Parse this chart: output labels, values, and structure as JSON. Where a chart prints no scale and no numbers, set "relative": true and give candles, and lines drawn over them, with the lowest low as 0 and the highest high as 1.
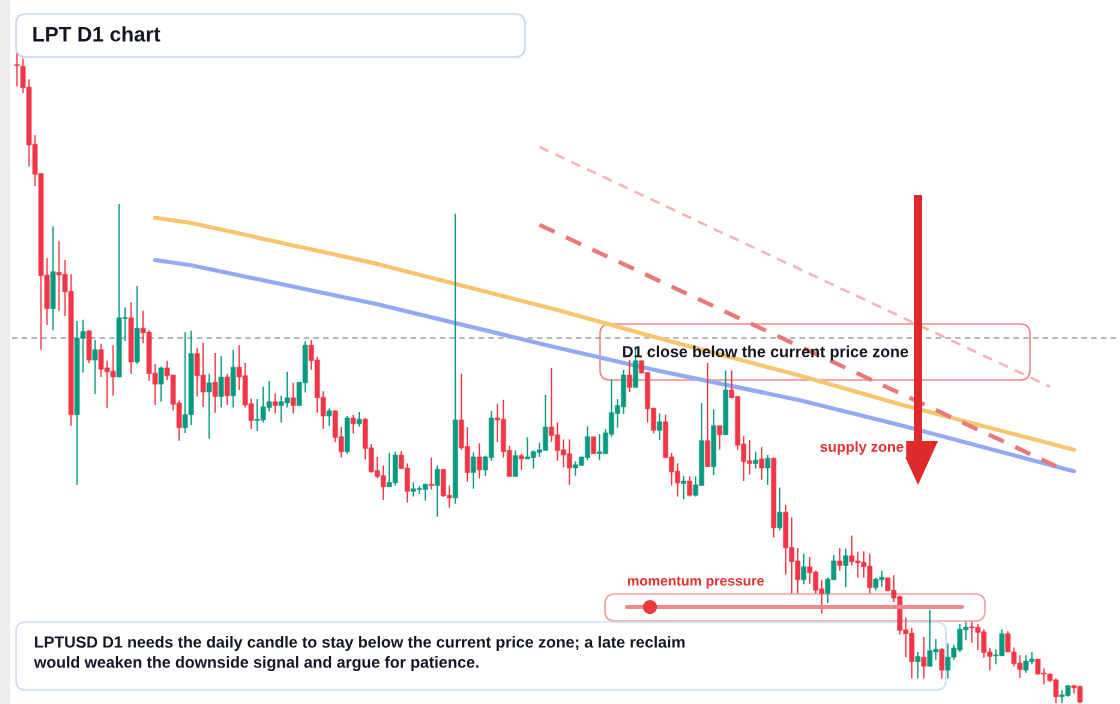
{
  "chart_data": {
    "type": "candlestick",
    "title": "LPT D1 chart",
    "relative": true,
    "categories": [
      null,
      null,
      null,
      null,
      null,
      null,
      null,
      null,
      null,
      null,
      null,
      null,
      null,
      null,
      null,
      null,
      null,
      null,
      null,
      null,
      null,
      null,
      null,
      null,
      null,
      null,
      null,
      null,
      null,
      null,
      null,
      null,
      null,
      null,
      null,
      null,
      null,
      null,
      null,
      null,
      null,
      null,
      null,
      null,
      null,
      null,
      null,
      null,
      null,
      null,
      null,
      null,
      null,
      null,
      null,
      null,
      null,
      null,
      null,
      null,
      null,
      null,
      null,
      null,
      null,
      null,
      null,
      null,
      null,
      null,
      null,
      null,
      null,
      null,
      null,
      null,
      null,
      null,
      null,
      null,
      null,
      null,
      null,
      null,
      null,
      null,
      null,
      null,
      null,
      null,
      null,
      null,
      null,
      null,
      null,
      null,
      null,
      null,
      null,
      null,
      null,
      null,
      null,
      null,
      null,
      null,
      null,
      null,
      null,
      null,
      null,
      null,
      null,
      null,
      null,
      null,
      null,
      null,
      null,
      null,
      null,
      null,
      null,
      null,
      null,
      null,
      null,
      null,
      null,
      null,
      null,
      null,
      null,
      null,
      null,
      null,
      null,
      null,
      null,
      null,
      null,
      null,
      null,
      null,
      null,
      null,
      null,
      null,
      null,
      null,
      null,
      null,
      null,
      null,
      null,
      null,
      null,
      null,
      null,
      null,
      null,
      null,
      null,
      null,
      null,
      null,
      null,
      null,
      null,
      null,
      null,
      null,
      null,
      null,
      null,
      null,
      null,
      null
    ],
    "ohlc": [
      [
        0.982,
        1.0,
        0.949,
        0.981
      ],
      [
        0.98,
        0.992,
        0.939,
        0.947
      ],
      [
        0.948,
        0.96,
        0.826,
        0.859
      ],
      [
        0.86,
        0.874,
        0.796,
        0.814
      ],
      [
        0.815,
        0.815,
        0.544,
        0.658
      ],
      [
        0.659,
        0.685,
        0.582,
        0.607
      ],
      [
        0.607,
        0.734,
        0.574,
        0.664
      ],
      [
        0.663,
        0.711,
        0.604,
        0.659
      ],
      [
        0.66,
        0.682,
        0.596,
        0.633
      ],
      [
        0.634,
        0.66,
        0.427,
        0.444
      ],
      [
        0.444,
        0.588,
        0.336,
        0.562
      ],
      [
        0.562,
        0.59,
        0.509,
        0.572
      ],
      [
        0.573,
        0.574,
        0.523,
        0.528
      ],
      [
        0.528,
        0.559,
        0.476,
        0.544
      ],
      [
        0.544,
        0.553,
        0.502,
        0.514
      ],
      [
        0.516,
        0.527,
        0.454,
        0.51
      ],
      [
        0.511,
        0.551,
        0.473,
        0.502
      ],
      [
        0.502,
        0.768,
        0.502,
        0.593
      ],
      [
        0.592,
        0.609,
        0.557,
        0.593
      ],
      [
        0.593,
        0.617,
        0.507,
        0.525
      ],
      [
        0.525,
        0.642,
        0.522,
        0.577
      ],
      [
        0.577,
        0.604,
        0.554,
        0.57
      ],
      [
        0.571,
        0.574,
        0.496,
        0.507
      ],
      [
        0.508,
        0.522,
        0.459,
        0.491
      ],
      [
        0.491,
        0.518,
        0.464,
        0.516
      ],
      [
        0.516,
        0.527,
        0.497,
        0.504
      ],
      [
        0.505,
        0.505,
        0.451,
        0.46
      ],
      [
        0.462,
        0.466,
        0.404,
        0.424
      ],
      [
        0.424,
        0.571,
        0.416,
        0.444
      ],
      [
        0.444,
        0.573,
        0.428,
        0.538
      ],
      [
        0.538,
        0.547,
        0.472,
        0.504
      ],
      [
        0.505,
        0.555,
        0.456,
        0.479
      ],
      [
        0.479,
        0.507,
        0.407,
        0.493
      ],
      [
        0.494,
        0.539,
        0.447,
        0.472
      ],
      [
        0.472,
        0.534,
        0.455,
        0.502
      ],
      [
        0.502,
        0.507,
        0.459,
        0.473
      ],
      [
        0.473,
        0.544,
        0.455,
        0.517
      ],
      [
        0.517,
        0.551,
        0.482,
        0.502
      ],
      [
        0.504,
        0.524,
        0.455,
        0.459
      ],
      [
        0.461,
        0.469,
        0.422,
        0.435
      ],
      [
        0.435,
        0.468,
        0.419,
        0.437
      ],
      [
        0.436,
        0.487,
        0.432,
        0.456
      ],
      [
        0.455,
        0.496,
        0.449,
        0.464
      ],
      [
        0.464,
        0.477,
        0.446,
        0.458
      ],
      [
        0.458,
        0.473,
        0.432,
        0.464
      ],
      [
        0.462,
        0.51,
        0.455,
        0.47
      ],
      [
        0.47,
        0.493,
        0.446,
        0.458
      ],
      [
        0.458,
        0.494,
        0.458,
        0.494
      ],
      [
        0.493,
        0.557,
        0.478,
        0.551
      ],
      [
        0.551,
        0.559,
        0.513,
        0.527
      ],
      [
        0.528,
        0.533,
        0.447,
        0.47
      ],
      [
        0.471,
        0.48,
        0.422,
        0.442
      ],
      [
        0.442,
        0.454,
        0.427,
        0.45
      ],
      [
        0.45,
        0.45,
        0.402,
        0.409
      ],
      [
        0.41,
        0.425,
        0.378,
        0.387
      ],
      [
        0.387,
        0.442,
        0.384,
        0.439
      ],
      [
        0.439,
        0.444,
        0.415,
        0.43
      ],
      [
        0.43,
        0.448,
        0.426,
        0.437
      ],
      [
        0.437,
        0.439,
        0.375,
        0.392
      ],
      [
        0.393,
        0.399,
        0.355,
        0.356
      ],
      [
        0.358,
        0.379,
        0.346,
        0.349
      ],
      [
        0.35,
        0.366,
        0.313,
        0.333
      ],
      [
        0.333,
        0.385,
        0.333,
        0.34
      ],
      [
        0.339,
        0.387,
        0.335,
        0.382
      ],
      [
        0.382,
        0.388,
        0.361,
        0.361
      ],
      [
        0.362,
        0.369,
        0.309,
        0.326
      ],
      [
        0.326,
        0.34,
        0.318,
        0.33
      ],
      [
        0.329,
        0.334,
        0.322,
        0.33
      ],
      [
        0.329,
        0.338,
        0.312,
        0.337
      ],
      [
        0.337,
        0.378,
        0.329,
        0.335
      ],
      [
        0.335,
        0.366,
        0.287,
        0.36
      ],
      [
        0.36,
        0.36,
        0.318,
        0.319
      ],
      [
        0.32,
        0.335,
        0.301,
        0.316
      ],
      [
        0.316,
        0.753,
        0.307,
        0.436
      ],
      [
        0.436,
        0.507,
        0.39,
        0.393
      ],
      [
        0.395,
        0.425,
        0.341,
        0.355
      ],
      [
        0.355,
        0.386,
        0.33,
        0.379
      ],
      [
        0.379,
        0.4,
        0.346,
        0.359
      ],
      [
        0.359,
        0.381,
        0.35,
        0.379
      ],
      [
        0.378,
        0.45,
        0.373,
        0.439
      ],
      [
        0.439,
        0.461,
        0.402,
        0.436
      ],
      [
        0.437,
        0.467,
        0.378,
        0.387
      ],
      [
        0.389,
        0.396,
        0.349,
        0.349
      ],
      [
        0.349,
        0.389,
        0.349,
        0.381
      ],
      [
        0.381,
        0.384,
        0.359,
        0.376
      ],
      [
        0.376,
        0.409,
        0.376,
        0.379
      ],
      [
        0.378,
        0.389,
        0.361,
        0.387
      ],
      [
        0.386,
        0.401,
        0.379,
        0.39
      ],
      [
        0.389,
        0.475,
        0.389,
        0.425
      ],
      [
        0.425,
        0.516,
        0.402,
        0.412
      ],
      [
        0.413,
        0.432,
        0.373,
        0.389
      ],
      [
        0.39,
        0.406,
        0.363,
        0.382
      ],
      [
        0.384,
        0.406,
        0.336,
        0.362
      ],
      [
        0.362,
        0.372,
        0.35,
        0.367
      ],
      [
        0.366,
        0.379,
        0.366,
        0.379
      ],
      [
        0.378,
        0.426,
        0.374,
        0.41
      ],
      [
        0.41,
        0.41,
        0.384,
        0.384
      ],
      [
        0.384,
        0.414,
        0.374,
        0.387
      ],
      [
        0.384,
        0.422,
        0.384,
        0.416
      ],
      [
        0.414,
        0.498,
        0.41,
        0.447
      ],
      [
        0.446,
        0.468,
        0.424,
        0.458
      ],
      [
        0.456,
        0.513,
        0.445,
        0.505
      ],
      [
        0.505,
        0.528,
        0.479,
        0.486
      ],
      [
        0.486,
        0.549,
        0.486,
        0.527
      ],
      [
        0.527,
        0.527,
        0.508,
        0.508
      ],
      [
        0.509,
        0.509,
        0.432,
        0.453
      ],
      [
        0.454,
        0.454,
        0.415,
        0.42
      ],
      [
        0.42,
        0.446,
        0.405,
        0.433
      ],
      [
        0.433,
        0.444,
        0.378,
        0.378
      ],
      [
        0.379,
        0.385,
        0.335,
        0.356
      ],
      [
        0.357,
        0.369,
        0.318,
        0.339
      ],
      [
        0.338,
        0.35,
        0.314,
        0.342
      ],
      [
        0.342,
        0.349,
        0.318,
        0.32
      ],
      [
        0.32,
        0.349,
        0.318,
        0.336
      ],
      [
        0.335,
        0.462,
        0.335,
        0.404
      ],
      [
        0.404,
        0.524,
        0.364,
        0.364
      ],
      [
        0.364,
        0.452,
        0.351,
        0.427
      ],
      [
        0.427,
        0.427,
        0.39,
        0.413
      ],
      [
        0.413,
        0.512,
        0.413,
        0.482
      ],
      [
        0.482,
        0.512,
        0.47,
        0.47
      ],
      [
        0.472,
        0.472,
        0.39,
        0.397
      ],
      [
        0.399,
        0.411,
        0.342,
        0.372
      ],
      [
        0.373,
        0.405,
        0.352,
        0.369
      ],
      [
        0.369,
        0.387,
        0.361,
        0.374
      ],
      [
        0.376,
        0.394,
        0.344,
        0.362
      ],
      [
        0.362,
        0.382,
        0.336,
        0.377
      ],
      [
        0.377,
        0.378,
        0.255,
        0.27
      ],
      [
        0.27,
        0.332,
        0.266,
        0.294
      ],
      [
        0.294,
        0.305,
        0.198,
        0.239
      ],
      [
        0.24,
        0.286,
        0.169,
        0.218
      ],
      [
        0.219,
        0.239,
        0.169,
        0.19
      ],
      [
        0.19,
        0.23,
        0.183,
        0.21
      ],
      [
        0.21,
        0.225,
        0.184,
        0.201
      ],
      [
        0.202,
        0.204,
        0.169,
        0.174
      ],
      [
        0.176,
        0.19,
        0.138,
        0.169
      ],
      [
        0.169,
        0.194,
        0.154,
        0.191
      ],
      [
        0.19,
        0.228,
        0.19,
        0.219
      ],
      [
        0.219,
        0.239,
        0.204,
        0.212
      ],
      [
        0.212,
        0.238,
        0.179,
        0.227
      ],
      [
        0.227,
        0.258,
        0.212,
        0.218
      ],
      [
        0.219,
        0.233,
        0.193,
        0.216
      ],
      [
        0.217,
        0.234,
        0.193,
        0.21
      ],
      [
        0.211,
        0.23,
        0.169,
        0.178
      ],
      [
        0.178,
        0.193,
        0.174,
        0.191
      ],
      [
        0.19,
        0.204,
        0.179,
        0.194
      ],
      [
        0.193,
        0.193,
        0.173,
        0.173
      ],
      [
        0.174,
        0.197,
        0.156,
        0.162
      ],
      [
        0.164,
        0.166,
        0.106,
        0.112
      ],
      [
        0.113,
        0.132,
        0.071,
        0.107
      ],
      [
        0.108,
        0.116,
        0.038,
        0.064
      ],
      [
        0.064,
        0.079,
        0.038,
        0.072
      ],
      [
        0.071,
        0.102,
        0.038,
        0.057
      ],
      [
        0.057,
        0.144,
        0.057,
        0.081
      ],
      [
        0.079,
        0.099,
        0.067,
        0.083
      ],
      [
        0.083,
        0.085,
        0.038,
        0.051
      ],
      [
        0.051,
        0.092,
        0.038,
        0.071
      ],
      [
        0.071,
        0.09,
        0.067,
        0.085
      ],
      [
        0.082,
        0.122,
        0.079,
        0.114
      ],
      [
        0.113,
        0.126,
        0.097,
        0.117
      ],
      [
        0.117,
        0.126,
        0.093,
        0.116
      ],
      [
        0.117,
        0.122,
        0.082,
        0.109
      ],
      [
        0.11,
        0.114,
        0.07,
        0.078
      ],
      [
        0.079,
        0.085,
        0.051,
        0.072
      ],
      [
        0.073,
        0.083,
        0.06,
        0.074
      ],
      [
        0.073,
        0.114,
        0.073,
        0.107
      ],
      [
        0.107,
        0.111,
        0.079,
        0.079
      ],
      [
        0.079,
        0.086,
        0.057,
        0.061
      ],
      [
        0.062,
        0.074,
        0.039,
        0.052
      ],
      [
        0.051,
        0.074,
        0.047,
        0.065
      ],
      [
        0.064,
        0.079,
        0.06,
        0.068
      ],
      [
        0.068,
        0.068,
        0.044,
        0.045
      ],
      [
        0.046,
        0.054,
        0.029,
        0.045
      ],
      [
        0.045,
        0.046,
        0.033,
        0.035
      ],
      [
        0.036,
        0.038,
        0.0,
        0.01
      ],
      [
        0.01,
        0.02,
        0.0,
        0.013
      ],
      [
        0.012,
        0.028,
        0.01,
        0.027
      ],
      [
        0.027,
        0.028,
        0.015,
        0.024
      ],
      [
        0.026,
        0.027,
        0.0,
        0.002
      ]
    ],
    "series": [
      {
        "type": "line",
        "color": "#f9c46e",
        "line_style": "solid",
        "values": [
          null,
          null,
          null,
          null,
          null,
          null,
          null,
          null,
          null,
          null,
          null,
          null,
          null,
          null,
          null,
          null,
          null,
          null,
          null,
          null,
          null,
          null,
          null,
          0.747,
          null,
          null,
          null,
          null,
          null,
          0.739,
          null,
          null,
          null,
          null,
          null,
          null,
          null,
          null,
          null,
          null,
          null,
          null,
          null,
          null,
          null,
          null,
          null,
          null,
          null,
          null,
          null,
          null,
          null,
          null,
          null,
          null,
          null,
          null,
          null,
          null,
          0.676,
          null,
          null,
          null,
          null,
          null,
          null,
          null,
          null,
          null,
          null,
          null,
          null,
          null,
          null,
          null,
          null,
          null,
          null,
          null,
          null,
          null,
          null,
          null,
          null,
          null,
          null,
          null,
          null,
          null,
          0.605,
          null,
          null,
          null,
          null,
          null,
          null,
          null,
          null,
          null,
          null,
          null,
          null,
          null,
          null,
          null,
          0.564,
          null,
          null,
          null,
          null,
          null,
          null,
          null,
          null,
          null,
          null,
          null,
          null,
          null,
          null,
          null,
          null,
          null,
          null,
          null,
          null,
          null,
          null,
          null,
          0.505,
          null,
          null,
          null,
          null,
          null,
          null,
          null,
          null,
          null,
          null,
          null,
          null,
          null,
          null,
          null,
          null,
          0.46,
          null,
          null,
          null,
          null,
          null,
          null,
          null,
          null,
          null,
          null,
          null,
          null,
          null,
          null,
          null,
          null,
          null,
          null,
          null,
          null,
          null,
          null,
          null,
          null,
          null,
          null,
          null,
          null,
          0.39,
          null
        ]
      },
      {
        "type": "line",
        "color": "#93aaf3",
        "line_style": "solid",
        "values": [
          null,
          null,
          null,
          null,
          null,
          null,
          null,
          null,
          null,
          null,
          null,
          null,
          null,
          null,
          null,
          null,
          null,
          null,
          null,
          null,
          null,
          null,
          null,
          0.682,
          null,
          null,
          null,
          null,
          null,
          0.674,
          null,
          null,
          null,
          null,
          null,
          null,
          null,
          null,
          null,
          null,
          null,
          null,
          null,
          null,
          null,
          null,
          null,
          null,
          null,
          null,
          null,
          null,
          null,
          null,
          null,
          null,
          null,
          null,
          null,
          null,
          0.614,
          null,
          null,
          null,
          null,
          null,
          null,
          null,
          null,
          null,
          null,
          null,
          null,
          null,
          null,
          null,
          null,
          null,
          null,
          null,
          null,
          null,
          null,
          null,
          null,
          null,
          null,
          null,
          null,
          null,
          0.547,
          null,
          null,
          null,
          null,
          null,
          null,
          null,
          null,
          null,
          null,
          null,
          null,
          null,
          null,
          null,
          0.513,
          null,
          null,
          null,
          null,
          null,
          null,
          null,
          null,
          null,
          null,
          null,
          null,
          null,
          null,
          null,
          null,
          null,
          null,
          null,
          null,
          null,
          null,
          null,
          0.467,
          null,
          null,
          null,
          null,
          null,
          null,
          null,
          null,
          null,
          null,
          null,
          null,
          null,
          null,
          null,
          null,
          0.428,
          null,
          null,
          null,
          null,
          null,
          null,
          null,
          null,
          null,
          null,
          null,
          null,
          null,
          null,
          null,
          null,
          null,
          null,
          null,
          null,
          null,
          null,
          null,
          null,
          null,
          null,
          null,
          null,
          0.357,
          null
        ]
      },
      {
        "type": "line",
        "color": "#e8787a",
        "line_style": "dashed",
        "values": [
          null,
          null,
          null,
          null,
          null,
          null,
          null,
          null,
          null,
          null,
          null,
          null,
          null,
          null,
          null,
          null,
          null,
          null,
          null,
          null,
          null,
          null,
          null,
          null,
          null,
          null,
          null,
          null,
          null,
          null,
          null,
          null,
          null,
          null,
          null,
          null,
          null,
          null,
          null,
          null,
          null,
          null,
          null,
          null,
          null,
          null,
          null,
          null,
          null,
          null,
          null,
          null,
          null,
          null,
          null,
          null,
          null,
          null,
          null,
          null,
          null,
          null,
          null,
          null,
          null,
          null,
          null,
          null,
          null,
          null,
          null,
          null,
          null,
          null,
          null,
          null,
          null,
          null,
          null,
          null,
          null,
          null,
          null,
          null,
          null,
          null,
          null,
          0.736,
          null,
          null,
          null,
          null,
          null,
          null,
          null,
          null,
          null,
          null,
          null,
          null,
          null,
          null,
          null,
          null,
          null,
          null,
          null,
          null,
          null,
          null,
          null,
          null,
          null,
          null,
          null,
          null,
          null,
          null,
          null,
          null,
          null,
          null,
          null,
          null,
          null,
          null,
          null,
          null,
          null,
          null,
          null,
          null,
          null,
          null,
          null,
          null,
          null,
          null,
          null,
          null,
          null,
          null,
          null,
          null,
          null,
          null,
          null,
          null,
          null,
          null,
          null,
          null,
          null,
          null,
          null,
          null,
          null,
          null,
          null,
          null,
          null,
          null,
          null,
          null,
          null,
          null,
          null,
          null,
          null,
          null,
          null,
          null,
          null,
          0.365,
          null,
          null,
          null,
          null
        ]
      },
      {
        "type": "line",
        "color": "#f4b4b5",
        "line_style": "dashed",
        "values": [
          null,
          null,
          null,
          null,
          null,
          null,
          null,
          null,
          null,
          null,
          null,
          null,
          null,
          null,
          null,
          null,
          null,
          null,
          null,
          null,
          null,
          null,
          null,
          null,
          null,
          null,
          null,
          null,
          null,
          null,
          null,
          null,
          null,
          null,
          null,
          null,
          null,
          null,
          null,
          null,
          null,
          null,
          null,
          null,
          null,
          null,
          null,
          null,
          null,
          null,
          null,
          null,
          null,
          null,
          null,
          null,
          null,
          null,
          null,
          null,
          null,
          null,
          null,
          null,
          null,
          null,
          null,
          null,
          null,
          null,
          null,
          null,
          null,
          null,
          null,
          null,
          null,
          null,
          null,
          null,
          null,
          null,
          null,
          null,
          null,
          null,
          null,
          0.856,
          null,
          null,
          null,
          null,
          null,
          null,
          null,
          null,
          null,
          null,
          null,
          null,
          null,
          null,
          null,
          null,
          null,
          null,
          null,
          null,
          null,
          null,
          null,
          null,
          null,
          null,
          null,
          null,
          null,
          null,
          null,
          null,
          null,
          null,
          null,
          null,
          null,
          null,
          null,
          null,
          null,
          null,
          null,
          null,
          null,
          null,
          null,
          null,
          null,
          null,
          null,
          null,
          null,
          null,
          null,
          null,
          null,
          null,
          null,
          null,
          null,
          null,
          null,
          null,
          null,
          null,
          null,
          null,
          null,
          null,
          null,
          null,
          null,
          null,
          null,
          null,
          null,
          null,
          null,
          null,
          null,
          null,
          null,
          null,
          0.487,
          null,
          null,
          null,
          null,
          null
        ]
      }
    ],
    "ref_lines": [
      {
        "axis": "y",
        "value": 0.562,
        "color": "#a0a0a0",
        "line_style": "dashed"
      }
    ],
    "annotations": [
      "D1 close below the current price zone",
      "supply zone",
      "momentum pressure",
      "LPTUSD D1 needs the daily candle to stay below the current price zone; a late reclaim would weaken the downside signal and argue for patience."
    ]
  }
}
